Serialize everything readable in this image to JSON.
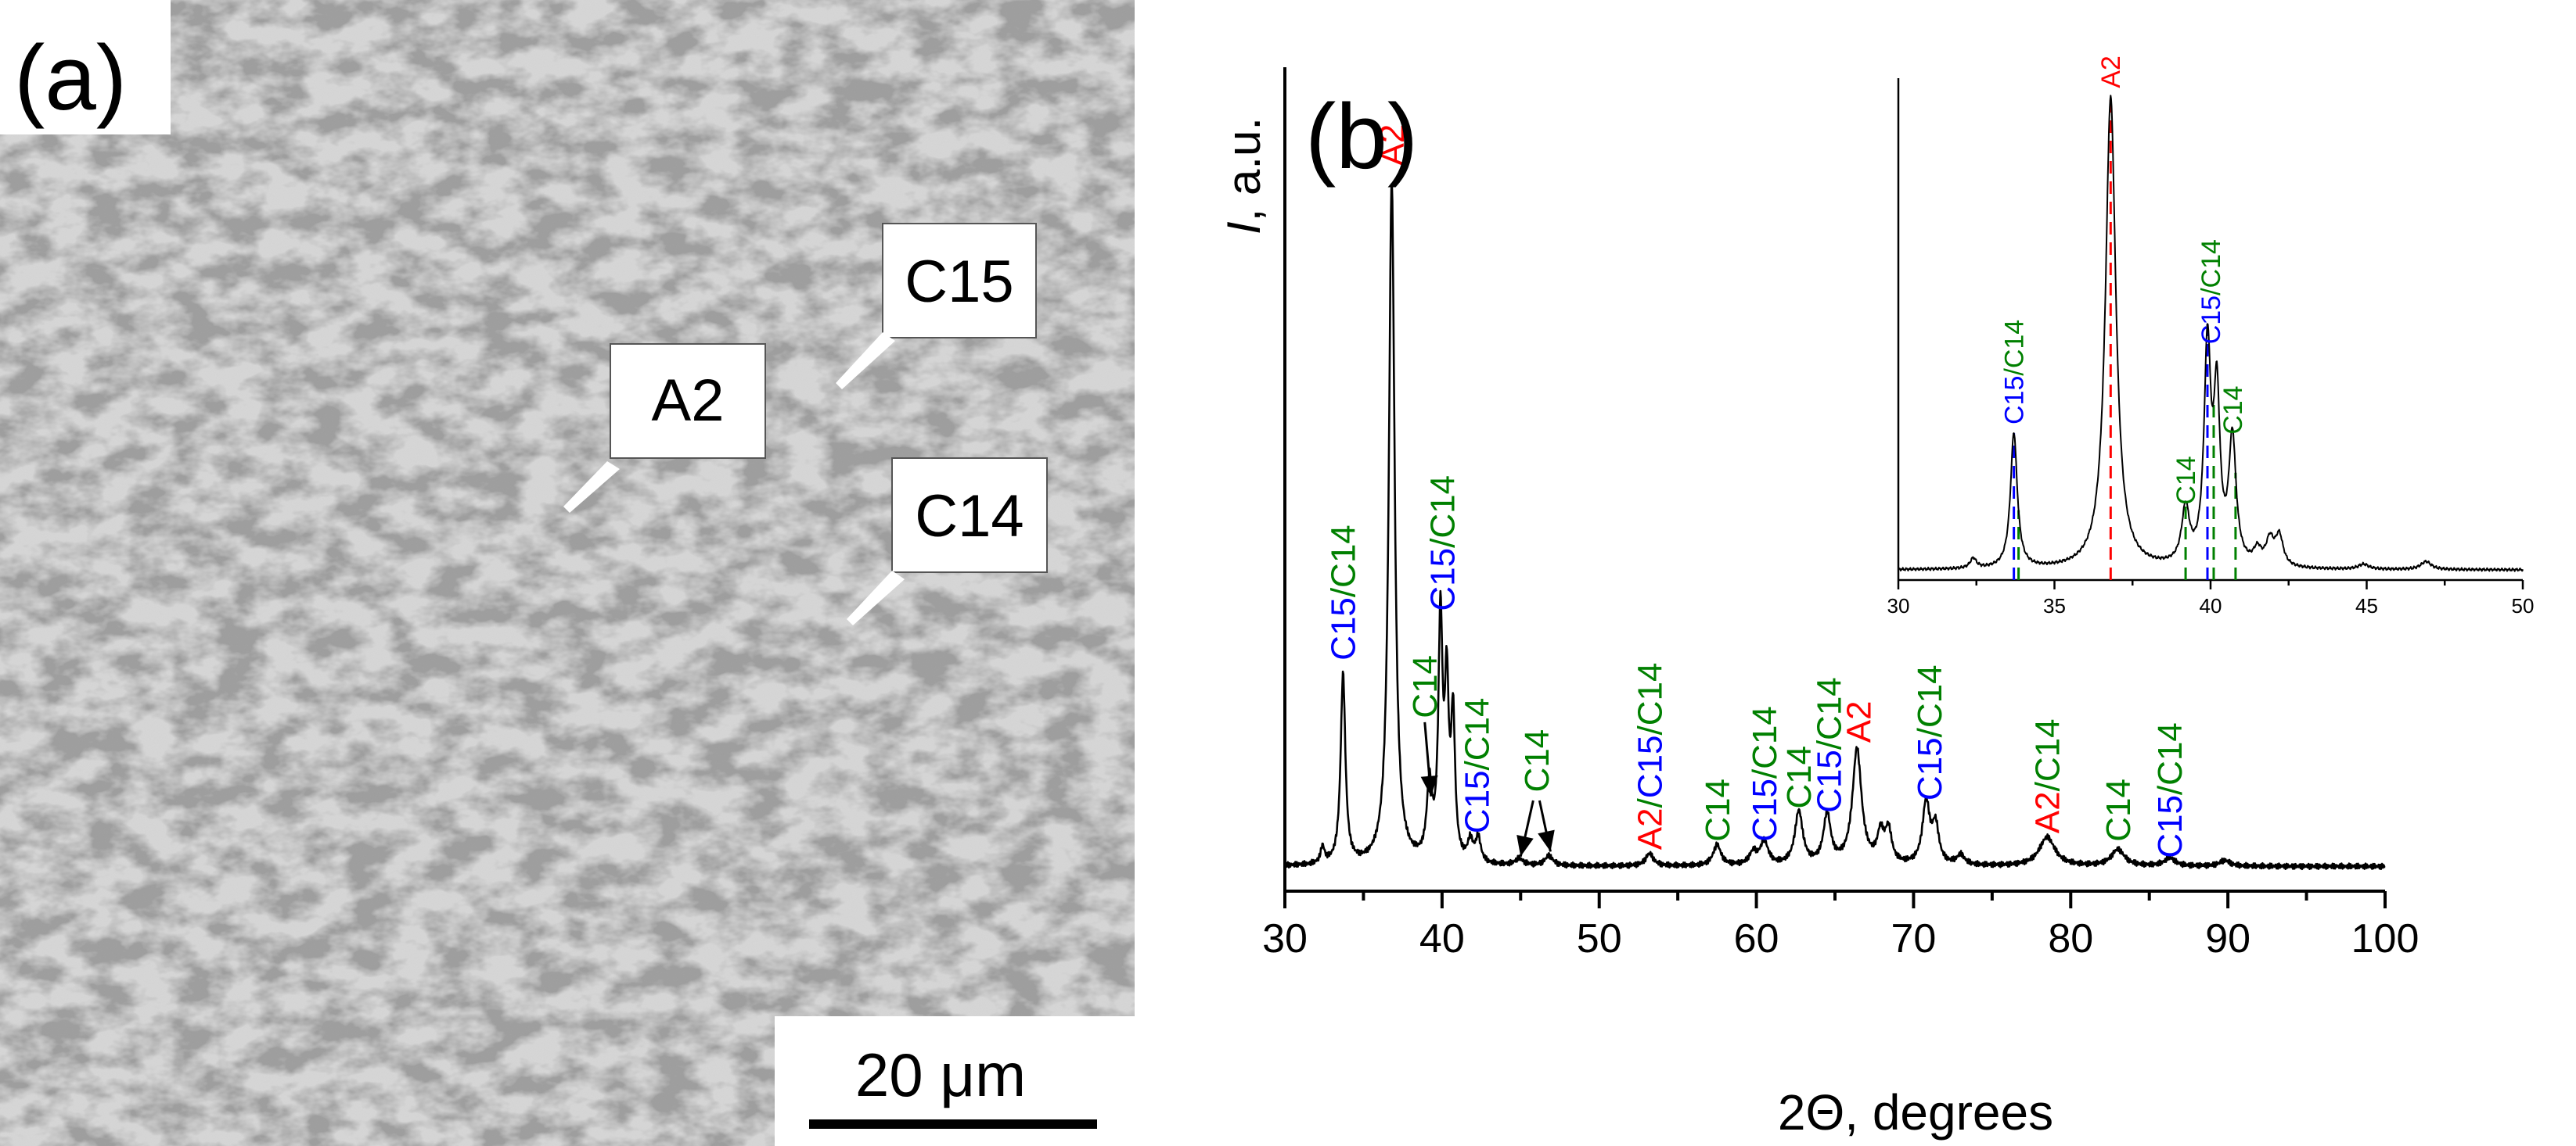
{
  "panel_a": {
    "label": "(a)",
    "annotations": [
      {
        "text": "A2"
      },
      {
        "text": "C15"
      },
      {
        "text": "C14"
      }
    ],
    "scale_bar": {
      "text": "20 μm"
    }
  },
  "colors": {
    "A2": "#ff0000",
    "C15": "#0000ff",
    "C14": "#008000",
    "trace": "#000000",
    "micrograph_light": "#d7d7d7",
    "micrograph_dark": "#9c9c9c"
  },
  "chart_data": [
    {
      "type": "line",
      "panel_label": "(b)",
      "xlabel": "2Θ, degrees",
      "ylabel": "I, a.u.",
      "ylabel_italic": "I",
      "ylabel_rest": ", a.u.",
      "xlim": [
        30,
        100
      ],
      "ylim": [
        0,
        100
      ],
      "xticks": [
        30,
        40,
        50,
        60,
        70,
        80,
        90,
        100
      ],
      "baseline": 3,
      "noise_amplitude": 0.35,
      "peaks": [
        {
          "x": 32.4,
          "h": 2.0,
          "w": 0.15
        },
        {
          "x": 33.7,
          "h": 23.0,
          "w": 0.18
        },
        {
          "x": 36.8,
          "h": 83.0,
          "w": 0.22
        },
        {
          "x": 39.2,
          "h": 9.0,
          "w": 0.2
        },
        {
          "x": 39.9,
          "h": 29.0,
          "w": 0.16
        },
        {
          "x": 40.3,
          "h": 20.0,
          "w": 0.15
        },
        {
          "x": 40.7,
          "h": 17.0,
          "w": 0.15
        },
        {
          "x": 41.8,
          "h": 2.5,
          "w": 0.2
        },
        {
          "x": 42.3,
          "h": 3.0,
          "w": 0.2
        },
        {
          "x": 44.9,
          "h": 0.8,
          "w": 0.3
        },
        {
          "x": 46.8,
          "h": 1.2,
          "w": 0.3
        },
        {
          "x": 53.2,
          "h": 1.5,
          "w": 0.3
        },
        {
          "x": 57.5,
          "h": 2.5,
          "w": 0.3
        },
        {
          "x": 59.8,
          "h": 1.5,
          "w": 0.3
        },
        {
          "x": 60.5,
          "h": 2.8,
          "w": 0.3
        },
        {
          "x": 62.7,
          "h": 6.5,
          "w": 0.3
        },
        {
          "x": 64.5,
          "h": 6.0,
          "w": 0.28
        },
        {
          "x": 66.4,
          "h": 14.0,
          "w": 0.35
        },
        {
          "x": 67.9,
          "h": 3.5,
          "w": 0.25
        },
        {
          "x": 68.4,
          "h": 4.0,
          "w": 0.25
        },
        {
          "x": 70.8,
          "h": 7.5,
          "w": 0.28
        },
        {
          "x": 71.4,
          "h": 4.5,
          "w": 0.25
        },
        {
          "x": 73.0,
          "h": 1.2,
          "w": 0.3
        },
        {
          "x": 78.5,
          "h": 3.5,
          "w": 0.6
        },
        {
          "x": 83.0,
          "h": 2.0,
          "w": 0.5
        },
        {
          "x": 86.3,
          "h": 1.0,
          "w": 0.4
        },
        {
          "x": 89.8,
          "h": 0.7,
          "w": 0.4
        }
      ],
      "peak_labels": [
        {
          "x": 33.7,
          "y": 28.0,
          "parts": [
            {
              "t": "C15",
              "c": "C15"
            },
            {
              "t": "/",
              "c": "C14"
            },
            {
              "t": "C14",
              "c": "C14"
            }
          ]
        },
        {
          "x": 36.8,
          "y": 88.0,
          "parts": [
            {
              "t": "A2",
              "c": "A2"
            }
          ]
        },
        {
          "x": 38.9,
          "y": 21.0,
          "parts": [
            {
              "t": "C14",
              "c": "C14"
            }
          ]
        },
        {
          "x": 40.0,
          "y": 34.0,
          "parts": [
            {
              "t": "C15",
              "c": "C15"
            },
            {
              "t": "/",
              "c": "C14"
            },
            {
              "t": "C14",
              "c": "C14"
            }
          ]
        },
        {
          "x": 42.2,
          "y": 7.0,
          "parts": [
            {
              "t": "C15",
              "c": "C15"
            },
            {
              "t": "/",
              "c": "C14"
            },
            {
              "t": "C14",
              "c": "C14"
            }
          ]
        },
        {
          "x": 46.0,
          "y": 12.0,
          "parts": [
            {
              "t": "C14",
              "c": "C14"
            }
          ]
        },
        {
          "x": 53.2,
          "y": 5.0,
          "parts": [
            {
              "t": "A2",
              "c": "A2"
            },
            {
              "t": "/",
              "c": "C14"
            },
            {
              "t": "C15",
              "c": "C15"
            },
            {
              "t": "/",
              "c": "C14"
            },
            {
              "t": "C14",
              "c": "C14"
            }
          ]
        },
        {
          "x": 57.5,
          "y": 6.0,
          "parts": [
            {
              "t": "C14",
              "c": "C14"
            }
          ]
        },
        {
          "x": 60.5,
          "y": 6.0,
          "parts": [
            {
              "t": "C15",
              "c": "C15"
            },
            {
              "t": "/",
              "c": "C14"
            },
            {
              "t": "C14",
              "c": "C14"
            }
          ]
        },
        {
          "x": 62.7,
          "y": 10.0,
          "parts": [
            {
              "t": "C14",
              "c": "C14"
            }
          ]
        },
        {
          "x": 64.6,
          "y": 9.5,
          "parts": [
            {
              "t": "C15",
              "c": "C15"
            },
            {
              "t": "/",
              "c": "C14"
            },
            {
              "t": "C14",
              "c": "C14"
            }
          ]
        },
        {
          "x": 66.5,
          "y": 18.0,
          "parts": [
            {
              "t": "A2",
              "c": "A2"
            }
          ]
        },
        {
          "x": 71.0,
          "y": 11.0,
          "parts": [
            {
              "t": "C15",
              "c": "C15"
            },
            {
              "t": "/",
              "c": "C14"
            },
            {
              "t": "C14",
              "c": "C14"
            }
          ]
        },
        {
          "x": 78.5,
          "y": 7.0,
          "parts": [
            {
              "t": "A2",
              "c": "A2"
            },
            {
              "t": "/",
              "c": "C14"
            },
            {
              "t": "C14",
              "c": "C14"
            }
          ]
        },
        {
          "x": 83.0,
          "y": 6.0,
          "parts": [
            {
              "t": "C14",
              "c": "C14"
            }
          ]
        },
        {
          "x": 86.3,
          "y": 4.0,
          "parts": [
            {
              "t": "C15",
              "c": "C15"
            },
            {
              "t": "/",
              "c": "C14"
            },
            {
              "t": "C14",
              "c": "C14"
            }
          ]
        }
      ],
      "arrows": [
        {
          "from": [
            38.9,
            20.5
          ],
          "to": [
            39.3,
            11.5
          ]
        },
        {
          "from": [
            45.8,
            11.0
          ],
          "to": [
            45.0,
            4.2
          ]
        },
        {
          "from": [
            46.2,
            11.0
          ],
          "to": [
            46.9,
            4.8
          ]
        }
      ]
    },
    {
      "type": "line",
      "role": "inset",
      "xlim": [
        30,
        50
      ],
      "ylim": [
        0,
        100
      ],
      "xticks": [
        30,
        35,
        40,
        45,
        50
      ],
      "baseline": 2,
      "noise_amplitude": 0.3,
      "peaks": [
        {
          "x": 32.4,
          "h": 2.0,
          "w": 0.12
        },
        {
          "x": 33.7,
          "h": 27.0,
          "w": 0.13
        },
        {
          "x": 36.8,
          "h": 94.0,
          "w": 0.2
        },
        {
          "x": 39.2,
          "h": 11.0,
          "w": 0.15
        },
        {
          "x": 39.9,
          "h": 43.0,
          "w": 0.13
        },
        {
          "x": 40.2,
          "h": 32.0,
          "w": 0.12
        },
        {
          "x": 40.7,
          "h": 25.0,
          "w": 0.14
        },
        {
          "x": 41.5,
          "h": 3.0,
          "w": 0.15
        },
        {
          "x": 41.9,
          "h": 5.0,
          "w": 0.15
        },
        {
          "x": 42.2,
          "h": 6.0,
          "w": 0.15
        },
        {
          "x": 44.9,
          "h": 1.0,
          "w": 0.2
        },
        {
          "x": 46.9,
          "h": 1.6,
          "w": 0.2
        }
      ],
      "peak_labels": [
        {
          "x": 33.7,
          "y": 31.0,
          "parts": [
            {
              "t": "C15",
              "c": "C15"
            },
            {
              "t": "/",
              "c": "C14"
            },
            {
              "t": "C14",
              "c": "C14"
            }
          ]
        },
        {
          "x": 36.8,
          "y": 98.0,
          "parts": [
            {
              "t": "A2",
              "c": "A2"
            }
          ]
        },
        {
          "x": 39.2,
          "y": 15.0,
          "parts": [
            {
              "t": "C14",
              "c": "C14"
            }
          ]
        },
        {
          "x": 40.0,
          "y": 47.0,
          "parts": [
            {
              "t": "C15",
              "c": "C15"
            },
            {
              "t": "/",
              "c": "C14"
            },
            {
              "t": "C14",
              "c": "C14"
            }
          ]
        },
        {
          "x": 40.7,
          "y": 29.0,
          "parts": [
            {
              "t": "C14",
              "c": "C14"
            }
          ]
        }
      ],
      "reference_lines": [
        {
          "x": 33.7,
          "phase": "C15"
        },
        {
          "x": 33.85,
          "phase": "C14"
        },
        {
          "x": 36.8,
          "phase": "A2"
        },
        {
          "x": 39.2,
          "phase": "C14"
        },
        {
          "x": 39.9,
          "phase": "C15"
        },
        {
          "x": 40.1,
          "phase": "C14"
        },
        {
          "x": 40.8,
          "phase": "C14"
        }
      ]
    }
  ]
}
